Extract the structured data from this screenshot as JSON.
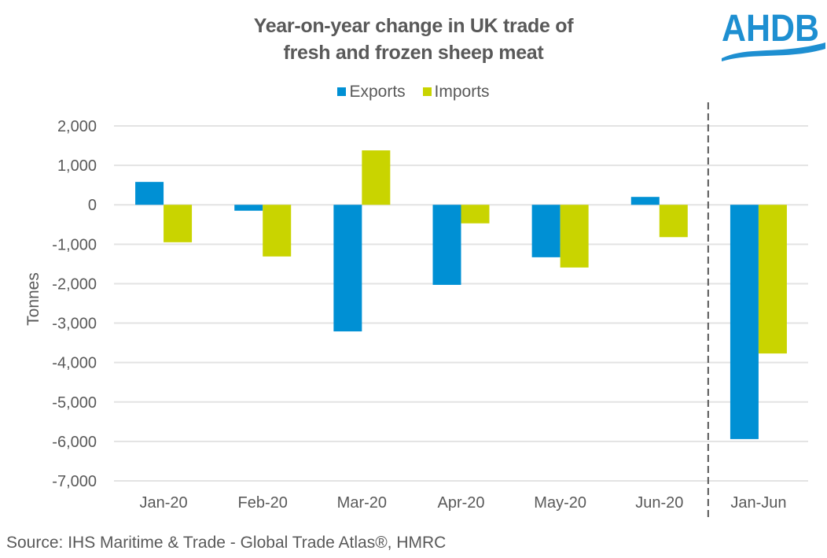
{
  "title_lines": [
    "Year-on-year change in UK trade of",
    "fresh and frozen sheep meat"
  ],
  "logo": {
    "text": "AHDB",
    "color": "#1e8fd1"
  },
  "source": "Source: IHS Maritime & Trade - Global Trade Atlas®, HMRC",
  "chart_data": {
    "type": "bar",
    "title": "Year-on-year change in UK trade of fresh and frozen sheep meat",
    "xlabel": "",
    "ylabel": "Tonnes",
    "ylim": [
      -7000,
      2000
    ],
    "yticks": [
      2000,
      1000,
      0,
      -1000,
      -2000,
      -3000,
      -4000,
      -5000,
      -6000,
      -7000
    ],
    "ytick_labels": [
      "2,000",
      "1,000",
      "0",
      "-1,000",
      "-2,000",
      "-3,000",
      "-4,000",
      "-5,000",
      "-6,000",
      "-7,000"
    ],
    "grid": true,
    "legend": "top-center",
    "categories": [
      "Jan-20",
      "Feb-20",
      "Mar-20",
      "Apr-20",
      "May-20",
      "Jun-20",
      "Jan-Jun"
    ],
    "series": [
      {
        "name": "Exports",
        "color": "#0090d4",
        "values": [
          580,
          -150,
          -3210,
          -2030,
          -1330,
          200,
          -5940
        ]
      },
      {
        "name": "Imports",
        "color": "#c9d400",
        "values": [
          -950,
          -1310,
          1380,
          -470,
          -1590,
          -820,
          -3770
        ]
      }
    ],
    "annotations": [
      {
        "type": "dashed-vertical-separator",
        "between": [
          "Jun-20",
          "Jan-Jun"
        ]
      }
    ]
  }
}
